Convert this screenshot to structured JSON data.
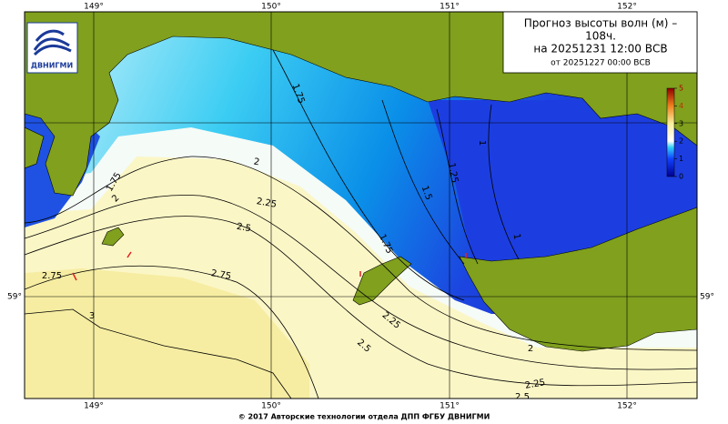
{
  "title": {
    "line1": "Прогноз высоты волн (м) –",
    "line2": "108ч.",
    "line3": "на 20251231 12:00 ВСВ",
    "line4": "от 20251227 00:00 ВСВ"
  },
  "logo_text": "ДВНИГМИ",
  "lon_labels": [
    "149°",
    "150°",
    "151°",
    "152°"
  ],
  "lat_label": "59°",
  "colorbar": {
    "ticks": [
      0,
      1,
      2,
      3,
      4,
      5
    ]
  },
  "contour_labels": [
    1.75,
    1.75,
    2,
    2,
    2.25,
    2.5,
    2.75,
    2.75,
    3,
    2.25,
    2.5,
    1.75,
    1.5,
    1.25,
    1,
    1,
    2,
    2.25,
    2.5
  ],
  "footer": "© 2017 Авторские технологии отдела ДПП ФГБУ ДВНИГМИ"
}
